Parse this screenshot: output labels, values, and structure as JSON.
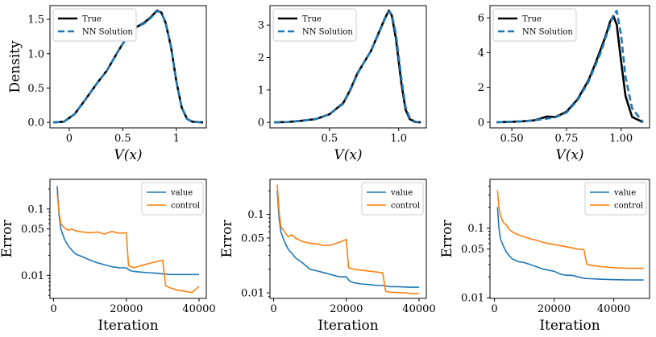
{
  "chart_data": [
    {
      "type": "line",
      "xlabel": "V(x)",
      "ylabel": "Density",
      "xlim": [
        -0.18,
        1.28
      ],
      "ylim": [
        -0.08,
        1.7
      ],
      "xticks": [
        0,
        0.5,
        1
      ],
      "xtick_labels": [
        "0",
        "0.5",
        "1"
      ],
      "yticks": [
        0,
        0.5,
        1.0,
        1.5
      ],
      "ytick_labels": [
        "0.0",
        "0.5",
        "1.0",
        "1.5"
      ],
      "legend": {
        "placement": "top-left",
        "entries": [
          "True",
          "NN Solution"
        ]
      },
      "series": [
        {
          "name": "True",
          "color": "#000000",
          "style": "solid",
          "x": [
            -0.15,
            -0.05,
            0.05,
            0.15,
            0.25,
            0.35,
            0.45,
            0.55,
            0.62,
            0.7,
            0.76,
            0.82,
            0.86,
            0.9,
            0.95,
            1.0,
            1.05,
            1.1,
            1.15,
            1.25
          ],
          "y": [
            0,
            0.01,
            0.12,
            0.33,
            0.55,
            0.75,
            1.02,
            1.27,
            1.38,
            1.45,
            1.53,
            1.63,
            1.6,
            1.45,
            1.1,
            0.6,
            0.22,
            0.05,
            0.01,
            0
          ]
        },
        {
          "name": "NN Solution",
          "color": "#1f77b4",
          "style": "dashed",
          "x": [
            -0.15,
            -0.05,
            0.05,
            0.15,
            0.25,
            0.35,
            0.45,
            0.55,
            0.62,
            0.7,
            0.76,
            0.82,
            0.86,
            0.9,
            0.95,
            1.0,
            1.05,
            1.1,
            1.15,
            1.25
          ],
          "y": [
            0,
            0.01,
            0.12,
            0.33,
            0.55,
            0.75,
            1.02,
            1.27,
            1.38,
            1.44,
            1.52,
            1.62,
            1.6,
            1.46,
            1.1,
            0.6,
            0.22,
            0.05,
            0.01,
            0
          ]
        }
      ]
    },
    {
      "type": "line",
      "xlabel": "V(x)",
      "ylabel": "",
      "xlim": [
        0.07,
        1.2
      ],
      "ylim": [
        -0.17,
        3.6
      ],
      "xticks": [
        0.5,
        1.0
      ],
      "xtick_labels": [
        "0.5",
        "1.0"
      ],
      "yticks": [
        0,
        1,
        2,
        3
      ],
      "ytick_labels": [
        "0",
        "1",
        "2",
        "3"
      ],
      "legend": {
        "placement": "top-left",
        "entries": [
          "True",
          "NN Solution"
        ]
      },
      "series": [
        {
          "name": "True",
          "color": "#000000",
          "style": "solid",
          "x": [
            0.1,
            0.2,
            0.3,
            0.4,
            0.5,
            0.6,
            0.65,
            0.7,
            0.75,
            0.8,
            0.85,
            0.9,
            0.93,
            0.95,
            0.98,
            1.02,
            1.05,
            1.08,
            1.12,
            1.16
          ],
          "y": [
            0,
            0.01,
            0.05,
            0.1,
            0.25,
            0.6,
            1.0,
            1.5,
            1.85,
            2.2,
            2.7,
            3.2,
            3.45,
            3.3,
            2.6,
            1.2,
            0.4,
            0.1,
            0.01,
            0
          ]
        },
        {
          "name": "NN Solution",
          "color": "#1f77b4",
          "style": "dashed",
          "x": [
            0.1,
            0.2,
            0.3,
            0.4,
            0.5,
            0.6,
            0.65,
            0.7,
            0.75,
            0.8,
            0.85,
            0.9,
            0.93,
            0.95,
            0.98,
            1.02,
            1.05,
            1.08,
            1.12,
            1.16
          ],
          "y": [
            0,
            0.01,
            0.05,
            0.1,
            0.25,
            0.58,
            0.98,
            1.48,
            1.85,
            2.2,
            2.68,
            3.18,
            3.42,
            3.33,
            2.75,
            1.35,
            0.48,
            0.14,
            0.02,
            0
          ]
        }
      ]
    },
    {
      "type": "line",
      "xlabel": "V(x)",
      "ylabel": "",
      "xlim": [
        0.4,
        1.13
      ],
      "ylim": [
        -0.33,
        6.7
      ],
      "xticks": [
        0.5,
        0.75,
        1.0
      ],
      "xtick_labels": [
        "0.50",
        "0.75",
        "1.00"
      ],
      "yticks": [
        0,
        2,
        4,
        6
      ],
      "ytick_labels": [
        "0",
        "2",
        "4",
        "6"
      ],
      "legend": {
        "placement": "top-left",
        "entries": [
          "True",
          "NN Solution"
        ]
      },
      "series": [
        {
          "name": "True",
          "color": "#000000",
          "style": "solid",
          "x": [
            0.43,
            0.5,
            0.55,
            0.6,
            0.63,
            0.66,
            0.7,
            0.75,
            0.8,
            0.85,
            0.88,
            0.91,
            0.93,
            0.95,
            0.965,
            0.98,
            1.0,
            1.02,
            1.05,
            1.1
          ],
          "y": [
            0,
            0.02,
            0.05,
            0.1,
            0.2,
            0.32,
            0.3,
            0.6,
            1.3,
            2.4,
            3.3,
            4.3,
            5.0,
            5.8,
            6.1,
            5.6,
            3.5,
            1.5,
            0.3,
            0
          ]
        },
        {
          "name": "NN Solution",
          "color": "#1f77b4",
          "style": "dashed",
          "x": [
            0.43,
            0.5,
            0.55,
            0.6,
            0.63,
            0.66,
            0.7,
            0.75,
            0.8,
            0.85,
            0.88,
            0.91,
            0.93,
            0.95,
            0.965,
            0.98,
            1.0,
            1.02,
            1.05,
            1.1
          ],
          "y": [
            0,
            0.02,
            0.05,
            0.1,
            0.15,
            0.2,
            0.28,
            0.55,
            1.25,
            2.3,
            3.2,
            4.1,
            4.9,
            5.6,
            6.2,
            6.4,
            5.0,
            2.6,
            0.8,
            0
          ]
        }
      ]
    },
    {
      "type": "line",
      "yscale": "log",
      "xlabel": "Iteration",
      "ylabel": "Error",
      "xlim": [
        -1000,
        42000
      ],
      "ylim": [
        0.0045,
        0.28
      ],
      "xticks": [
        0,
        20000,
        40000
      ],
      "xtick_labels": [
        "0",
        "20000",
        "40000"
      ],
      "yticks": [
        0.01,
        0.05,
        0.1
      ],
      "ytick_labels": [
        "0.01",
        "0.05",
        "0.1"
      ],
      "legend": {
        "placement": "top-right",
        "entries": [
          "value",
          "control"
        ]
      },
      "series": [
        {
          "name": "value",
          "color": "#1f77b4",
          "x": [
            1000,
            1500,
            2000,
            3000,
            4000,
            5000,
            6000,
            8000,
            10000,
            12000,
            14000,
            16000,
            18000,
            20000,
            21000,
            22000,
            24000,
            26000,
            28000,
            30000,
            32000,
            34000,
            36000,
            38000,
            40000
          ],
          "y": [
            0.22,
            0.08,
            0.05,
            0.035,
            0.028,
            0.024,
            0.021,
            0.019,
            0.017,
            0.0155,
            0.0145,
            0.0135,
            0.013,
            0.013,
            0.0118,
            0.0115,
            0.0112,
            0.011,
            0.0108,
            0.0105,
            0.0103,
            0.0103,
            0.0103,
            0.0103,
            0.0103
          ]
        },
        {
          "name": "control",
          "color": "#ff7f0e",
          "x": [
            1000,
            1500,
            2000,
            3000,
            4000,
            5000,
            6000,
            8000,
            10000,
            12000,
            14000,
            16000,
            18000,
            20000,
            20600,
            22000,
            24000,
            26000,
            28000,
            30000,
            30800,
            32000,
            34000,
            36000,
            38000,
            40000
          ],
          "y": [
            0.17,
            0.09,
            0.06,
            0.052,
            0.048,
            0.05,
            0.047,
            0.045,
            0.044,
            0.045,
            0.042,
            0.046,
            0.043,
            0.044,
            0.014,
            0.013,
            0.014,
            0.015,
            0.016,
            0.017,
            0.007,
            0.0065,
            0.006,
            0.0058,
            0.0055,
            0.0068
          ]
        }
      ]
    },
    {
      "type": "line",
      "yscale": "log",
      "xlabel": "Iteration",
      "ylabel": "Error",
      "xlim": [
        -1000,
        42000
      ],
      "ylim": [
        0.0085,
        0.28
      ],
      "xticks": [
        0,
        20000,
        40000
      ],
      "xtick_labels": [
        "0",
        "20000",
        "40000"
      ],
      "yticks": [
        0.01,
        0.05,
        0.1
      ],
      "ytick_labels": [
        "0.01",
        "0.05",
        "0.1"
      ],
      "legend": {
        "placement": "top-right",
        "entries": [
          "value",
          "control"
        ]
      },
      "series": [
        {
          "name": "value",
          "color": "#1f77b4",
          "x": [
            1000,
            1500,
            2000,
            3000,
            4000,
            5000,
            6000,
            8000,
            10000,
            12000,
            14000,
            16000,
            18000,
            20000,
            21000,
            22000,
            24000,
            26000,
            28000,
            30000,
            32000,
            34000,
            36000,
            38000,
            40000
          ],
          "y": [
            0.2,
            0.09,
            0.06,
            0.045,
            0.036,
            0.032,
            0.028,
            0.024,
            0.02,
            0.019,
            0.018,
            0.017,
            0.016,
            0.016,
            0.014,
            0.0135,
            0.013,
            0.0128,
            0.0125,
            0.0124,
            0.012,
            0.012,
            0.0119,
            0.0118,
            0.0118
          ]
        },
        {
          "name": "control",
          "color": "#ff7f0e",
          "x": [
            1000,
            1500,
            2000,
            3000,
            4000,
            5000,
            6000,
            8000,
            10000,
            12000,
            14000,
            16000,
            18000,
            20000,
            20600,
            22000,
            24000,
            26000,
            28000,
            30000,
            30800,
            32000,
            34000,
            36000,
            38000,
            40000
          ],
          "y": [
            0.24,
            0.11,
            0.07,
            0.06,
            0.052,
            0.055,
            0.05,
            0.045,
            0.043,
            0.042,
            0.04,
            0.041,
            0.044,
            0.048,
            0.021,
            0.02,
            0.0195,
            0.019,
            0.0185,
            0.018,
            0.0105,
            0.0102,
            0.0101,
            0.01,
            0.0098,
            0.0098
          ]
        }
      ]
    },
    {
      "type": "line",
      "yscale": "log",
      "xlabel": "Iteration",
      "ylabel": "Error",
      "xlim": [
        -1500,
        52000
      ],
      "ylim": [
        0.0098,
        0.5
      ],
      "xticks": [
        0,
        20000,
        40000
      ],
      "xtick_labels": [
        "0",
        "20000",
        "40000"
      ],
      "yticks": [
        0.01,
        0.05,
        0.1
      ],
      "ytick_labels": [
        "0.01",
        "0.05",
        "0.1"
      ],
      "legend": {
        "placement": "top-right",
        "entries": [
          "value",
          "control"
        ]
      },
      "series": [
        {
          "name": "value",
          "color": "#1f77b4",
          "x": [
            1000,
            1500,
            2000,
            3000,
            4000,
            5000,
            6000,
            8000,
            10000,
            12000,
            14000,
            16000,
            18000,
            20000,
            22000,
            24000,
            26000,
            28000,
            30000,
            32000,
            35000,
            40000,
            45000,
            50000
          ],
          "y": [
            0.2,
            0.1,
            0.07,
            0.055,
            0.045,
            0.04,
            0.036,
            0.033,
            0.032,
            0.03,
            0.028,
            0.026,
            0.025,
            0.024,
            0.022,
            0.021,
            0.021,
            0.02,
            0.019,
            0.0188,
            0.0185,
            0.0182,
            0.018,
            0.018
          ]
        },
        {
          "name": "control",
          "color": "#ff7f0e",
          "x": [
            1000,
            1500,
            2000,
            3000,
            4000,
            5000,
            6000,
            8000,
            10000,
            12000,
            14000,
            16000,
            18000,
            20000,
            22000,
            24000,
            26000,
            28000,
            30000,
            31000,
            33000,
            36000,
            40000,
            45000,
            50000
          ],
          "y": [
            0.35,
            0.2,
            0.15,
            0.12,
            0.11,
            0.095,
            0.088,
            0.08,
            0.075,
            0.07,
            0.067,
            0.063,
            0.06,
            0.058,
            0.056,
            0.054,
            0.052,
            0.05,
            0.049,
            0.03,
            0.029,
            0.028,
            0.027,
            0.0265,
            0.0265
          ]
        }
      ]
    }
  ]
}
